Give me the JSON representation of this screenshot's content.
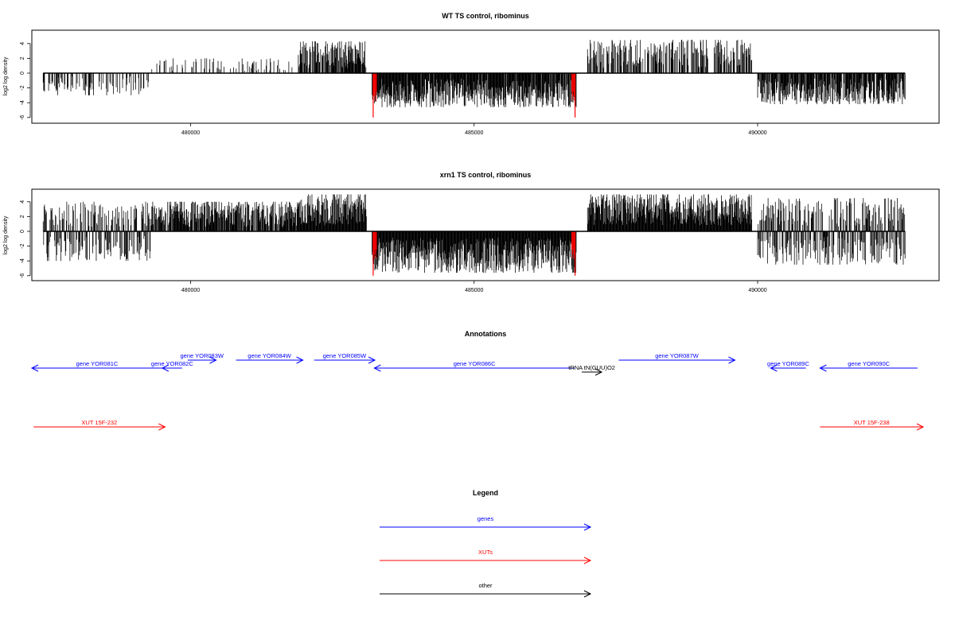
{
  "colors": {
    "genes": "#0000ff",
    "xuts": "#ff0000",
    "other": "#000000",
    "highlight": "#ff0000"
  },
  "panels": [
    {
      "title": "WT TS control, ribominus",
      "ylabel": "log2 log density"
    },
    {
      "title": "xrn1 TS control, ribominus",
      "ylabel": "log2 log density"
    }
  ],
  "annotations_title": "Annotations",
  "legend": {
    "title": "Legend",
    "items": [
      {
        "label": "genes",
        "color": "#0000ff"
      },
      {
        "label": "XUTs",
        "color": "#ff0000"
      },
      {
        "label": "other",
        "color": "#000000"
      }
    ]
  },
  "chart_data": [
    {
      "type": "bar",
      "title": "WT TS control, ribominus",
      "xlabel": "",
      "ylabel": "log2 log density",
      "xlim": [
        477200,
        493200
      ],
      "ylim": [
        -6,
        5.5
      ],
      "x_ticks": [
        480000,
        485000,
        490000
      ],
      "x_tick_labels": [
        "480000",
        "485000",
        "490000"
      ],
      "y_ticks": [
        -6,
        -4,
        -2,
        0,
        2,
        4
      ],
      "y_tick_labels": [
        "-6",
        "-4",
        "-2",
        "0",
        "2",
        "4"
      ],
      "segments": [
        {
          "x_start": 477400,
          "x_end": 479300,
          "sign": "-",
          "max": 3.0,
          "density": 0.35,
          "seed": 11
        },
        {
          "x_start": 479300,
          "x_end": 481800,
          "sign": "+",
          "max": 2.0,
          "density": 0.2,
          "seed": 12
        },
        {
          "x_start": 481900,
          "x_end": 483100,
          "sign": "+",
          "max": 4.3,
          "density": 0.85,
          "seed": 13
        },
        {
          "x_start": 483200,
          "x_end": 486800,
          "sign": "-",
          "max": 4.6,
          "density": 0.95,
          "seed": 14
        },
        {
          "x_start": 487000,
          "x_end": 489900,
          "sign": "+",
          "max": 4.5,
          "density": 0.55,
          "seed": 15
        },
        {
          "x_start": 490000,
          "x_end": 492600,
          "sign": "-",
          "max": 4.2,
          "density": 0.8,
          "seed": 16
        }
      ],
      "highlight_lines": [
        {
          "x": 483220,
          "value": -6.0
        },
        {
          "x": 486780,
          "value": -6.0
        }
      ]
    },
    {
      "type": "bar",
      "title": "xrn1 TS control, ribominus",
      "xlabel": "",
      "ylabel": "log2 log density",
      "xlim": [
        477200,
        493200
      ],
      "ylim": [
        -6,
        5.5
      ],
      "x_ticks": [
        480000,
        485000,
        490000
      ],
      "x_tick_labels": [
        "480000",
        "485000",
        "490000"
      ],
      "y_ticks": [
        -6,
        -4,
        -2,
        0,
        2,
        4
      ],
      "y_tick_labels": [
        "-6",
        "-4",
        "-2",
        "0",
        "2",
        "4"
      ],
      "segments": [
        {
          "x_start": 477400,
          "x_end": 479300,
          "sign": "mixed",
          "max": 4.0,
          "density": 0.8,
          "seed": 21
        },
        {
          "x_start": 479300,
          "x_end": 481900,
          "sign": "+",
          "max": 4.0,
          "density": 0.85,
          "seed": 22
        },
        {
          "x_start": 481900,
          "x_end": 483100,
          "sign": "+",
          "max": 5.0,
          "density": 1.0,
          "seed": 23
        },
        {
          "x_start": 483200,
          "x_end": 486800,
          "sign": "-",
          "max": 5.6,
          "density": 1.0,
          "seed": 24
        },
        {
          "x_start": 487000,
          "x_end": 489900,
          "sign": "+",
          "max": 5.0,
          "density": 1.0,
          "seed": 25
        },
        {
          "x_start": 490000,
          "x_end": 492600,
          "sign": "mixed",
          "max": 4.5,
          "density": 0.9,
          "seed": 26
        }
      ],
      "highlight_lines": [
        {
          "x": 483220,
          "value": -6.0
        },
        {
          "x": 486780,
          "value": -6.0
        }
      ]
    }
  ],
  "annotations": [
    {
      "label": "gene YOR081C",
      "start": 477200,
      "end": 479500,
      "strand": "-",
      "row": 0,
      "type": "genes"
    },
    {
      "label": "gene YOR082C",
      "start": 479500,
      "end": 479850,
      "strand": "-",
      "row": 0,
      "type": "genes"
    },
    {
      "label": "gene YOR083W",
      "start": 479950,
      "end": 480450,
      "strand": "+",
      "row": 1,
      "type": "genes"
    },
    {
      "label": "gene YOR084W",
      "start": 480800,
      "end": 481980,
      "strand": "+",
      "row": 1,
      "type": "genes"
    },
    {
      "label": "gene YOR085W",
      "start": 482180,
      "end": 483250,
      "strand": "+",
      "row": 1,
      "type": "genes"
    },
    {
      "label": "gene YOR086C",
      "start": 483240,
      "end": 486770,
      "strand": "-",
      "row": 0,
      "type": "genes"
    },
    {
      "label": "tRNA tN(GUU)O2",
      "start": 486900,
      "end": 487250,
      "strand": "+",
      "row": 2,
      "type": "other"
    },
    {
      "label": "gene YOR087W",
      "start": 487550,
      "end": 489600,
      "strand": "+",
      "row": 1,
      "type": "genes"
    },
    {
      "label": "gene YOR089C",
      "start": 490230,
      "end": 490850,
      "strand": "-",
      "row": 0,
      "type": "genes"
    },
    {
      "label": "gene YOR090C",
      "start": 491100,
      "end": 492820,
      "strand": "-",
      "row": 0,
      "type": "genes"
    },
    {
      "label": "XUT 15F-232",
      "start": 477230,
      "end": 479550,
      "strand": "+",
      "row": 3,
      "type": "xuts"
    },
    {
      "label": "XUT 15F-238",
      "start": 491100,
      "end": 492920,
      "strand": "+",
      "row": 3,
      "type": "xuts"
    }
  ]
}
